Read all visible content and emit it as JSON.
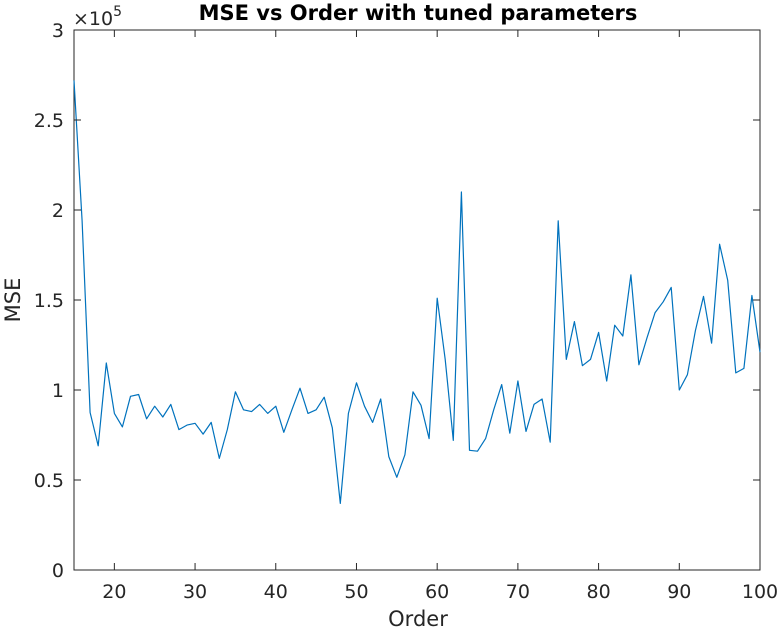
{
  "chart_data": {
    "type": "line",
    "title": "MSE vs Order with tuned parameters",
    "xlabel": "Order",
    "ylabel": "MSE",
    "xlim": [
      15,
      100
    ],
    "ylim": [
      0,
      300000
    ],
    "xticks": [
      20,
      30,
      40,
      50,
      60,
      70,
      80,
      90,
      100
    ],
    "yticks": [
      0,
      50000,
      100000,
      150000,
      200000,
      250000,
      300000
    ],
    "ytick_labels": [
      "0",
      "0.5",
      "1",
      "1.5",
      "2",
      "2.5",
      "3"
    ],
    "y_exponent_base": "×10",
    "y_exponent_power": "5",
    "grid": false,
    "line_color": "#0072BD",
    "series": [
      {
        "x": [
          15,
          16,
          17,
          18,
          19,
          20,
          21,
          22,
          23,
          24,
          25,
          26,
          27,
          28,
          29,
          30,
          31,
          32,
          33,
          34,
          35,
          36,
          37,
          38,
          39,
          40,
          41,
          42,
          43,
          44,
          45,
          46,
          47,
          48,
          49,
          50,
          51,
          52,
          53,
          54,
          55,
          56,
          57,
          58,
          59,
          60,
          61,
          62,
          63,
          64,
          65,
          66,
          67,
          68,
          69,
          70,
          71,
          72,
          73,
          74,
          75,
          76,
          77,
          78,
          79,
          80,
          81,
          82,
          83,
          84,
          85,
          86,
          87,
          88,
          89,
          90,
          91,
          92,
          93,
          94,
          95,
          96,
          97,
          98,
          99,
          100
        ],
        "values": [
          272000,
          194000,
          87500,
          69000,
          115000,
          87000,
          79500,
          96500,
          97500,
          84000,
          91000,
          85000,
          92000,
          78000,
          80500,
          81500,
          75500,
          82000,
          62000,
          78000,
          99000,
          89000,
          88000,
          92000,
          87000,
          91000,
          76500,
          89000,
          101000,
          87000,
          89000,
          96000,
          79000,
          37000,
          87000,
          104000,
          91000,
          82000,
          95000,
          63000,
          51500,
          64000,
          99000,
          91500,
          73000,
          151000,
          117000,
          72000,
          210000,
          66500,
          66000,
          73000,
          89000,
          103000,
          76000,
          105000,
          77000,
          92000,
          95000,
          71000,
          194000,
          117000,
          138000,
          113500,
          117000,
          132000,
          105000,
          136000,
          130000,
          164000,
          114000,
          129000,
          143000,
          149000,
          157000,
          100000,
          108500,
          133000,
          152000,
          126000,
          181000,
          161000,
          109500,
          112000,
          152500,
          121000
        ]
      }
    ]
  }
}
